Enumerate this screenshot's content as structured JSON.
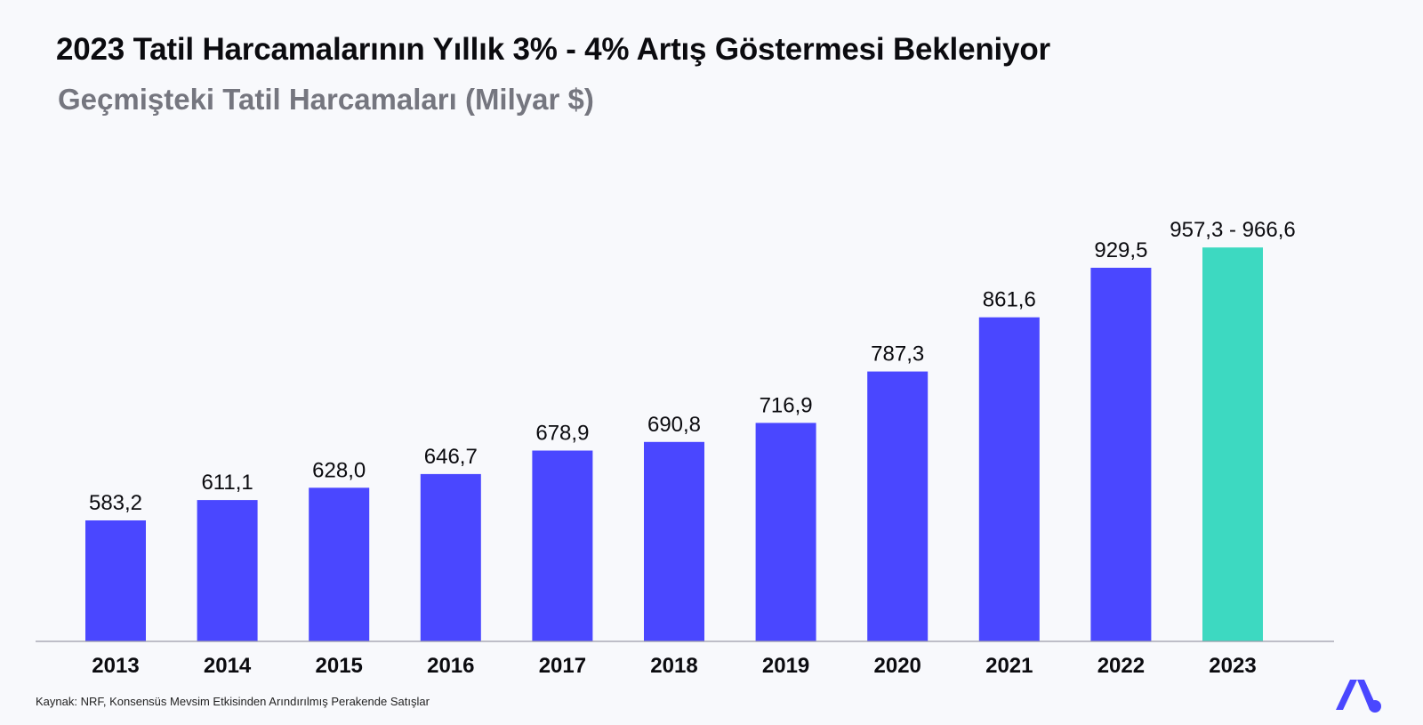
{
  "header": {
    "title": "2023 Tatil Harcamalarının Yıllık 3% - 4% Artış Göstermesi Bekleniyor",
    "subtitle": "Geçmişteki Tatil Harcamaları (Milyar $)"
  },
  "footer": {
    "source": "Kaynak: NRF, Konsensüs Mevsim Etkisinden Arındırılmış Perakende Satışlar"
  },
  "logo": {
    "icon": "brand-logo-icon",
    "color": "#4a47ff"
  },
  "colors": {
    "historical": "#4a47ff",
    "forecast": "#3dd9c1",
    "axis": "#9a9aa8"
  },
  "chart_data": {
    "type": "bar",
    "title": "2023 Tatil Harcamalarının Yıllık 3% - 4% Artış Göstermesi Bekleniyor",
    "subtitle": "Geçmişteki Tatil Harcamaları (Milyar $)",
    "xlabel": "",
    "ylabel": "",
    "categories": [
      "2013",
      "2014",
      "2015",
      "2016",
      "2017",
      "2018",
      "2019",
      "2020",
      "2021",
      "2022",
      "2023"
    ],
    "values": [
      583.2,
      611.1,
      628.0,
      646.7,
      678.9,
      690.8,
      716.9,
      787.3,
      861.6,
      929.5,
      957.3
    ],
    "data_labels": [
      "583,2",
      "611,1",
      "628,0",
      "646,7",
      "678,9",
      "690,8",
      "716,9",
      "787,3",
      "861,6",
      "929,5",
      "957,3 - 966,6"
    ],
    "forecast": {
      "category": "2023",
      "low": 957.3,
      "high": 966.6
    },
    "grid": false,
    "legend": "none"
  }
}
